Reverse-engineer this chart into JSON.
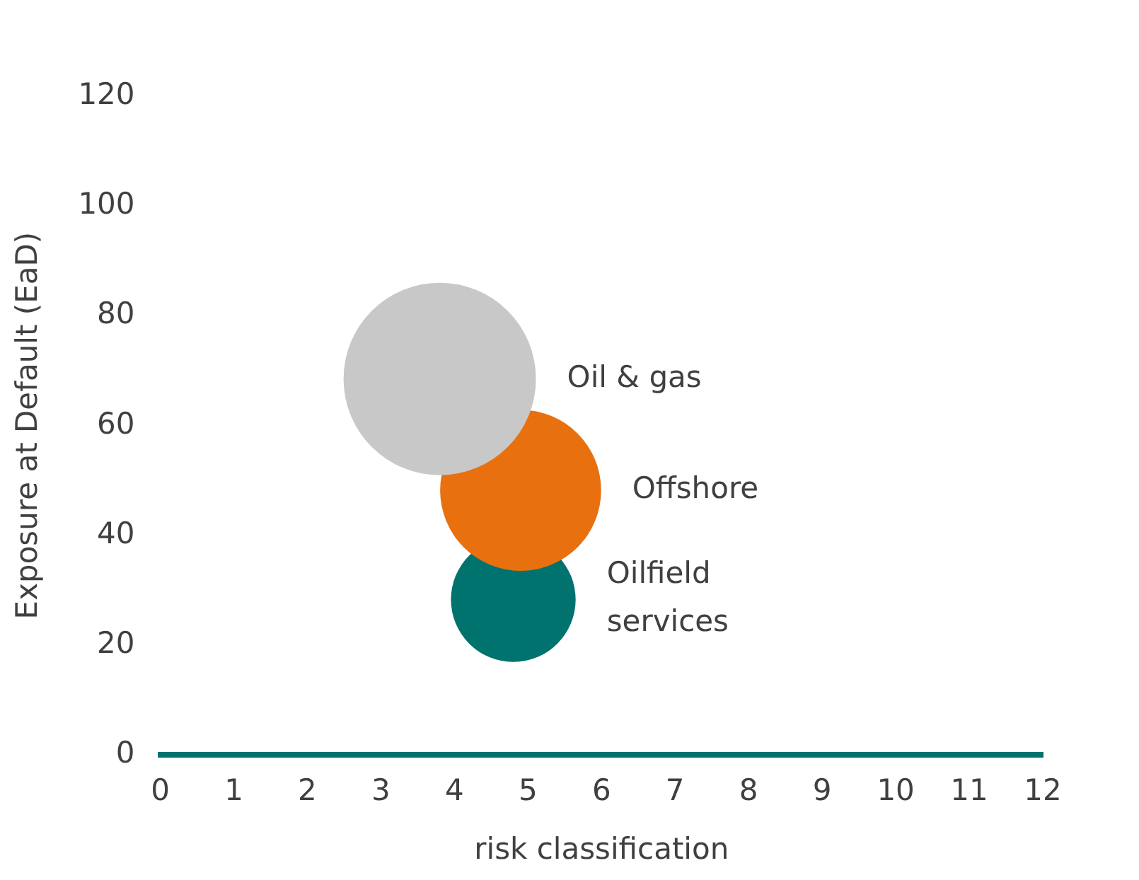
{
  "chart_data": {
    "type": "bubble",
    "xlabel": "risk classification",
    "ylabel": "Exposure at Default (EaD)",
    "xlim": [
      0,
      12
    ],
    "xticks": [
      0,
      1,
      2,
      3,
      4,
      5,
      6,
      7,
      8,
      9,
      10,
      11,
      12
    ],
    "ylim": [
      0,
      120
    ],
    "yticks": [
      0,
      20,
      40,
      60,
      80,
      100,
      120
    ],
    "grid": false,
    "legend": false,
    "series": [
      {
        "name": "Oil & gas",
        "color": "#c8c8c8",
        "x": [
          3.8
        ],
        "values": [
          68.5
        ],
        "sizes": [
          1
        ]
      },
      {
        "name": "Offshore",
        "color": "#e8700e",
        "x": [
          4.9
        ],
        "values": [
          48.2
        ],
        "sizes": [
          0.7
        ]
      },
      {
        "name": "Oilfield services",
        "color": "#00736f",
        "x": [
          4.8
        ],
        "values": [
          28.3
        ],
        "sizes": [
          0.42
        ]
      }
    ]
  }
}
